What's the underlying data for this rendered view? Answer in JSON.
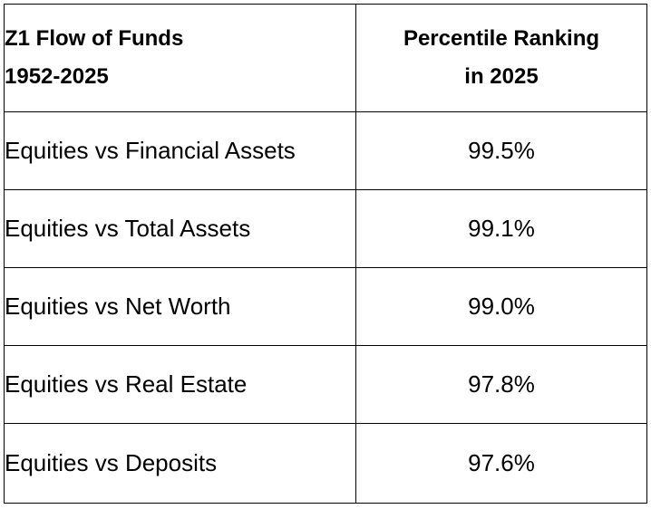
{
  "table": {
    "header": {
      "col1_line1": "Z1 Flow of Funds",
      "col1_line2": "1952-2025",
      "col2_line1": "Percentile Ranking",
      "col2_line2": "in 2025"
    },
    "rows": [
      {
        "label": "Equities vs Financial Assets",
        "value": "99.5%"
      },
      {
        "label": "Equities vs Total Assets",
        "value": "99.1%"
      },
      {
        "label": "Equities vs Net Worth",
        "value": "99.0%"
      },
      {
        "label": "Equities vs Real Estate",
        "value": "97.8%"
      },
      {
        "label": "Equities vs Deposits",
        "value": "97.6%"
      }
    ]
  }
}
